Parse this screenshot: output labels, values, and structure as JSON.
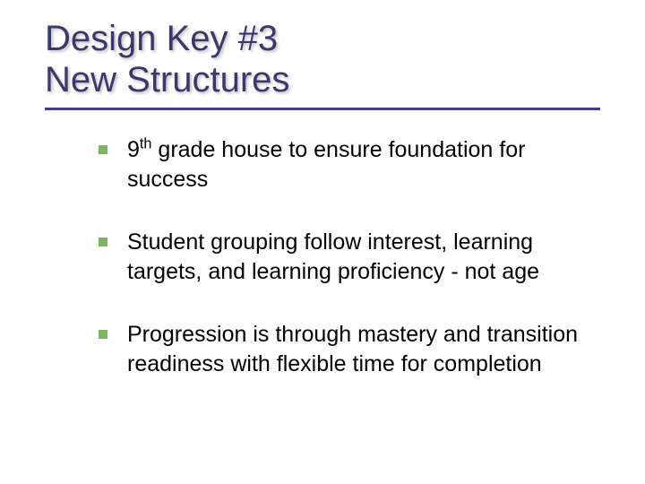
{
  "slide": {
    "title_line1": "Design Key #3",
    "title_line2": "New Structures",
    "bullets": [
      {
        "prefix": "9",
        "sup": "th",
        "rest": " grade house to ensure foundation for success"
      },
      {
        "text": "Student grouping follow interest, learning targets, and learning proficiency - not age"
      },
      {
        "text": "Progression is through mastery and transition readiness with flexible time for completion"
      }
    ]
  },
  "style": {
    "title_color": "#3a3a6a",
    "title_fontsize": 40,
    "underline_color": "#404080",
    "bullet_marker_color": "#7fb366",
    "bullet_marker_size": 10,
    "body_fontsize": 25,
    "body_color": "#000000",
    "background_color": "#ffffff",
    "font_family": "Verdana"
  }
}
